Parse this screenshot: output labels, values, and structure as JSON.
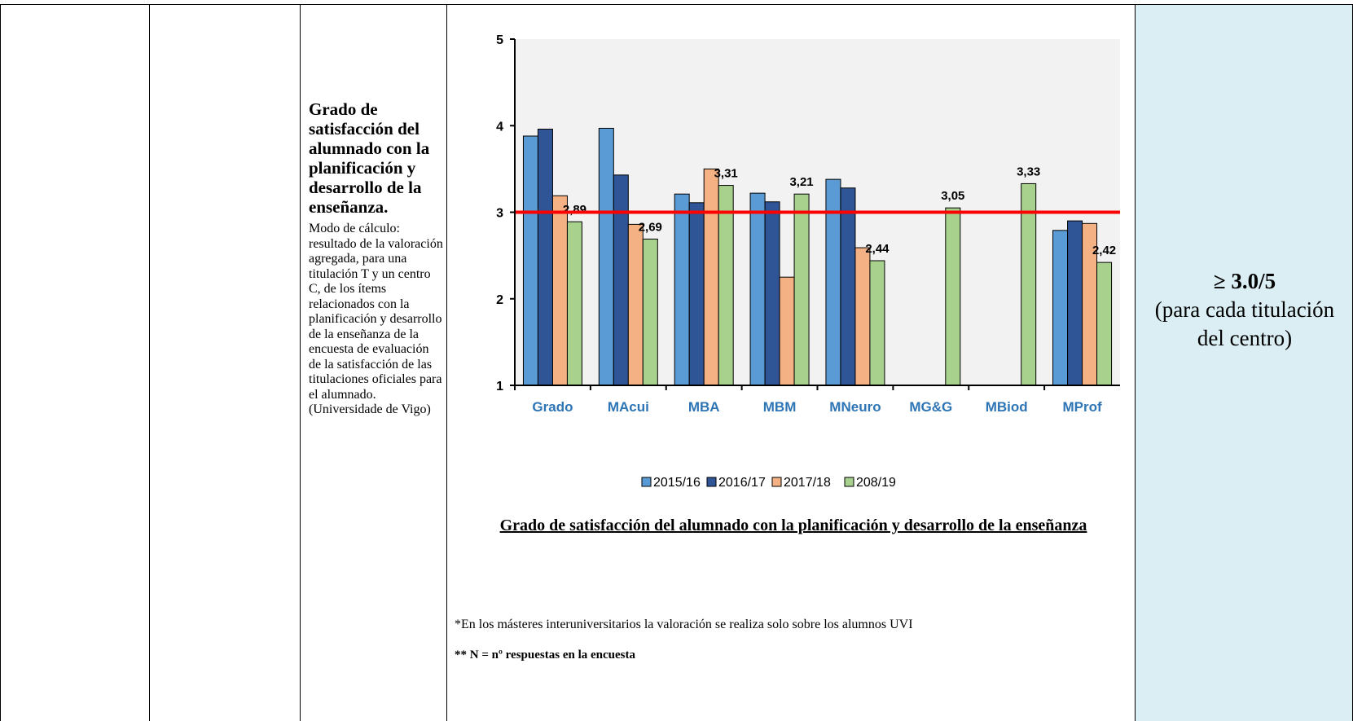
{
  "table": {
    "indicator": {
      "title": "Grado de satisfacción del alumnado con la planificación y desarrollo de la enseñanza.",
      "description": "Modo de cálculo: resultado de la valoración agregada, para una titulación T y un centro C, de los ítems relacionados con la planificación y desarrollo de la enseñanza de la encuesta de evaluación de la satisfacción de las titulaciones oficiales para el alumnado.",
      "source": "(Universidade de Vigo)"
    },
    "target": {
      "value": "≥ 3.0/5",
      "note": "(para cada titulación del centro)"
    }
  },
  "chart_data": {
    "type": "bar",
    "categories": [
      "Grado",
      "MAcui",
      "MBA",
      "MBM",
      "MNeuro",
      "MG&G",
      "MBiod",
      "MProf"
    ],
    "series": [
      {
        "name": "2015/16",
        "color": "#5b9bd5",
        "values": [
          3.88,
          3.97,
          3.21,
          3.22,
          3.38,
          null,
          null,
          2.79
        ]
      },
      {
        "name": "2016/17",
        "color": "#2f5597",
        "values": [
          3.96,
          3.43,
          3.11,
          3.12,
          3.28,
          null,
          null,
          2.9
        ]
      },
      {
        "name": "2017/18",
        "color": "#f4b183",
        "values": [
          3.19,
          2.86,
          3.5,
          2.25,
          2.59,
          null,
          null,
          2.87
        ]
      },
      {
        "name": "208/19",
        "color": "#a9d18e",
        "values": [
          2.89,
          2.69,
          3.31,
          3.21,
          2.44,
          3.05,
          3.33,
          2.42
        ],
        "value_labels": [
          "2,89",
          "2,69",
          "3,31",
          "3,21",
          "2,44",
          "3,05",
          "3,33",
          "2,42"
        ]
      }
    ],
    "ylim": [
      1,
      5
    ],
    "yticks": [
      1,
      2,
      3,
      4,
      5
    ],
    "reference_line": {
      "value": 3,
      "color": "#ff0000"
    },
    "legend": "bottom",
    "caption": "Grado de satisfacción del alumnado con la planificación y desarrollo de la enseñanza",
    "footnotes": [
      "*En los másteres interuniversitarios la valoración se realiza solo sobre los alumnos UVI",
      "** N = nº respuestas en la encuesta"
    ]
  }
}
